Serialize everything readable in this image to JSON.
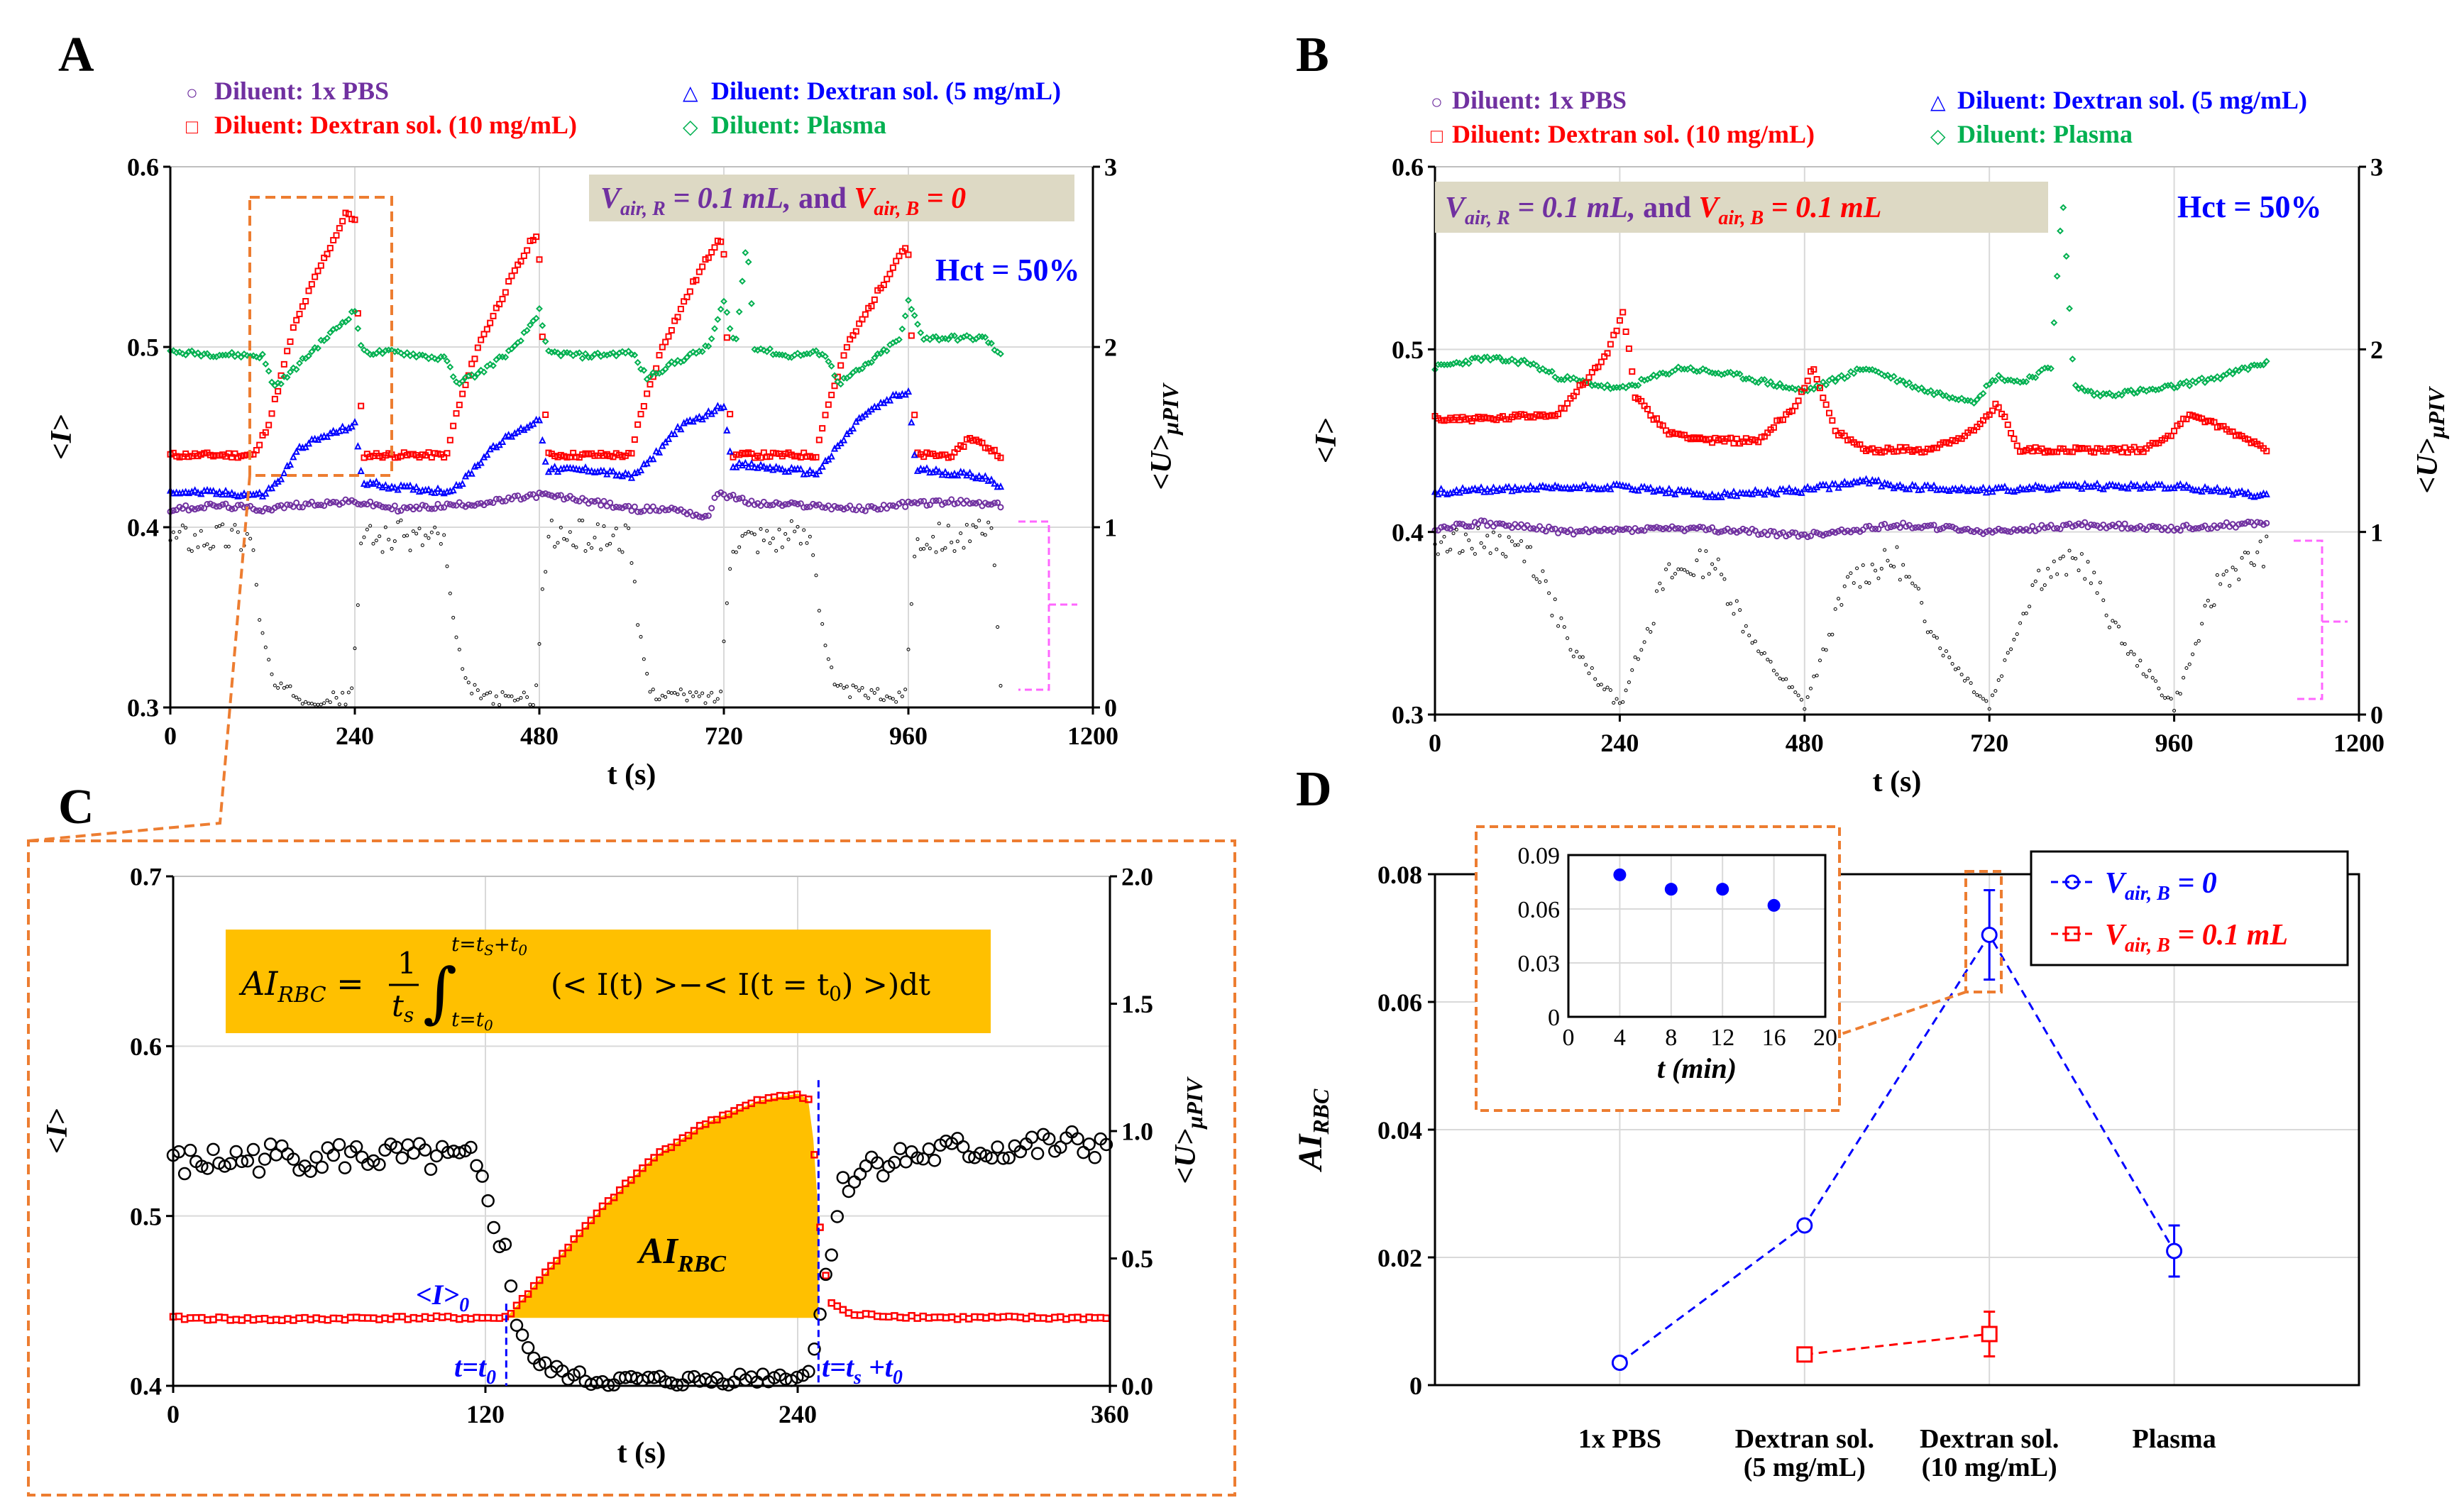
{
  "colors": {
    "pbs": "#7030a0",
    "dex10": "#ff0000",
    "dex5": "#0000ff",
    "plasma": "#00b050",
    "piv": "#000000",
    "box_orange": "#ed7d31",
    "formula_bg": "#ffc000",
    "banner_bg": "#ddd9c4",
    "magenta": "#ff66ff",
    "grid": "#d9d9d9"
  },
  "panels": {
    "A": {
      "letter": "A"
    },
    "B": {
      "letter": "B"
    },
    "C": {
      "letter": "C"
    },
    "D": {
      "letter": "D"
    }
  },
  "legend": {
    "pbs": "Diluent: 1x PBS",
    "dex10": "Diluent: Dextran sol. (10 mg/mL)",
    "dex5": "Diluent: Dextran sol. (5 mg/mL)",
    "plasma": "Diluent: Plasma"
  },
  "banner_A": {
    "part1": "V",
    "sub1": "air, R",
    "part2": " = 0.1 mL,",
    "and": "  and ",
    "part3": "V",
    "sub3": "air, B",
    "part4": " = 0"
  },
  "banner_B": {
    "part1": "V",
    "sub1": "air, R",
    "part2": " = 0.1 mL,",
    "and": "  and ",
    "part3": "V",
    "sub3": "air, B",
    "part4": " = 0.1 mL"
  },
  "hct_label": "Hct = 50%",
  "C_labels": {
    "formula_lhs": "AI",
    "formula_lhs_sub": "RBC",
    "formula_eq": " = ",
    "frac_num": "1",
    "frac_den": "t",
    "frac_den_sub": "s",
    "int_upper": "t=t",
    "int_upper_sub": "S",
    "int_upper_tail": "+t",
    "int_upper_sub2": "0",
    "int_lower": "t=t",
    "int_lower_sub": "0",
    "integrand": "(< I(t) >−< I(t = t",
    "integrand_sub": "0",
    "integrand_tail": ") >)dt",
    "ai_label": "AI",
    "ai_sub": "RBC",
    "i0_label": "<I>",
    "i0_sub": "0",
    "t0_label": "t=t",
    "t0_sub": "0",
    "ts_label": "t=t",
    "ts_sub": "s",
    "ts_tail": " +t",
    "ts_sub2": "0"
  },
  "axes": {
    "ylabel_I": "<I>",
    "ylabel_U": "<U>",
    "ylabel_U_sub": "μPIV",
    "xlabel_t": "t (s)",
    "ylabel_AI": "AI",
    "ylabel_AI_sub": "RBC",
    "inset_xlabel": "t (min)"
  },
  "D_legend": {
    "v0_a": "V",
    "v0_sub": "air, B",
    "v0_b": " = 0",
    "v1_a": "V",
    "v1_sub": "air, B",
    "v1_b": " = 0.1 mL"
  },
  "chart_data": [
    {
      "panel": "A",
      "type": "scatter",
      "title": "",
      "xlabel": "t (s)",
      "ylabel": "<I>",
      "y2label": "<U>μPIV",
      "xlim": [
        0,
        1200
      ],
      "ylim": [
        0.3,
        0.6
      ],
      "y2lim": [
        0,
        3
      ],
      "xticks": [
        0,
        240,
        480,
        720,
        960,
        1200
      ],
      "yticks": [
        0.3,
        0.4,
        0.5,
        0.6
      ],
      "y2ticks": [
        0,
        1,
        2,
        3
      ],
      "series": [
        {
          "name": "Diluent: Dextran sol. (10 mg/mL)",
          "key": "dex10",
          "x": [
            0,
            110,
            130,
            160,
            190,
            230,
            240,
            250,
            260,
            300,
            360,
            370,
            400,
            440,
            475,
            480,
            490,
            500,
            540,
            600,
            610,
            640,
            680,
            715,
            720,
            730,
            760,
            780,
            840,
            850,
            880,
            920,
            955,
            960,
            970,
            1000,
            1020,
            1040,
            1080
          ],
          "y": [
            0.44,
            0.44,
            0.46,
            0.51,
            0.54,
            0.575,
            0.57,
            0.44,
            0.44,
            0.44,
            0.44,
            0.46,
            0.5,
            0.535,
            0.563,
            0.55,
            0.44,
            0.44,
            0.44,
            0.44,
            0.46,
            0.5,
            0.535,
            0.562,
            0.55,
            0.44,
            0.44,
            0.44,
            0.44,
            0.46,
            0.5,
            0.53,
            0.556,
            0.55,
            0.44,
            0.44,
            0.44,
            0.45,
            0.44
          ]
        },
        {
          "name": "Diluent: Plasma",
          "key": "plasma",
          "x": [
            0,
            120,
            135,
            150,
            190,
            240,
            250,
            300,
            360,
            370,
            400,
            450,
            480,
            490,
            540,
            600,
            620,
            650,
            700,
            720,
            735,
            750,
            760,
            800,
            850,
            870,
            900,
            950,
            960,
            980,
            1000,
            1060,
            1080
          ],
          "y": [
            0.497,
            0.495,
            0.478,
            0.483,
            0.5,
            0.52,
            0.497,
            0.497,
            0.493,
            0.48,
            0.485,
            0.5,
            0.52,
            0.497,
            0.495,
            0.497,
            0.483,
            0.49,
            0.5,
            0.525,
            0.5,
            0.56,
            0.5,
            0.495,
            0.497,
            0.48,
            0.488,
            0.505,
            0.525,
            0.505,
            0.505,
            0.505,
            0.495
          ]
        },
        {
          "name": "Diluent: Dextran sol. (5 mg/mL)",
          "key": "dex5",
          "x": [
            0,
            120,
            140,
            170,
            210,
            240,
            250,
            300,
            360,
            380,
            420,
            460,
            480,
            490,
            550,
            600,
            620,
            660,
            700,
            720,
            730,
            780,
            840,
            860,
            900,
            940,
            960,
            970,
            1020,
            1060,
            1080
          ],
          "y": [
            0.42,
            0.418,
            0.425,
            0.445,
            0.452,
            0.457,
            0.425,
            0.422,
            0.42,
            0.425,
            0.445,
            0.455,
            0.46,
            0.432,
            0.432,
            0.428,
            0.435,
            0.455,
            0.463,
            0.468,
            0.435,
            0.433,
            0.43,
            0.44,
            0.462,
            0.472,
            0.475,
            0.432,
            0.43,
            0.428,
            0.422
          ]
        },
        {
          "name": "Diluent: 1x PBS",
          "key": "pbs",
          "x": [
            0,
            60,
            120,
            180,
            240,
            300,
            360,
            420,
            480,
            540,
            600,
            660,
            700,
            710,
            720,
            760,
            840,
            900,
            960,
            1020,
            1080
          ],
          "y": [
            0.41,
            0.412,
            0.41,
            0.413,
            0.414,
            0.41,
            0.412,
            0.414,
            0.418,
            0.415,
            0.41,
            0.41,
            0.405,
            0.42,
            0.418,
            0.413,
            0.412,
            0.41,
            0.413,
            0.414,
            0.412
          ]
        },
        {
          "name": "<U>μPIV",
          "key": "piv",
          "axis": "y2",
          "x": [
            0,
            105,
            120,
            135,
            175,
            235,
            250,
            265,
            355,
            370,
            385,
            415,
            475,
            490,
            505,
            595,
            610,
            625,
            715,
            730,
            745,
            835,
            850,
            865,
            955,
            970,
            985,
            1070,
            1080
          ],
          "y": [
            0.95,
            0.95,
            0.4,
            0.12,
            0.05,
            0.05,
            0.95,
            0.95,
            0.95,
            0.4,
            0.12,
            0.05,
            0.05,
            0.95,
            0.95,
            0.95,
            0.4,
            0.08,
            0.05,
            0.95,
            0.95,
            0.95,
            0.4,
            0.1,
            0.05,
            0.95,
            0.95,
            0.95,
            0.1
          ]
        }
      ]
    },
    {
      "panel": "B",
      "type": "scatter",
      "title": "",
      "xlabel": "t (s)",
      "ylabel": "<I>",
      "y2label": "<U>μPIV",
      "xlim": [
        0,
        1200
      ],
      "ylim": [
        0.3,
        0.6
      ],
      "y2lim": [
        0,
        3
      ],
      "xticks": [
        0,
        240,
        480,
        720,
        960,
        1200
      ],
      "yticks": [
        0.3,
        0.4,
        0.5,
        0.6
      ],
      "y2ticks": [
        0,
        1,
        2,
        3
      ],
      "series": [
        {
          "name": "Diluent: Plasma",
          "key": "plasma",
          "x": [
            0,
            60,
            120,
            160,
            240,
            320,
            400,
            480,
            560,
            640,
            700,
            730,
            760,
            800,
            815,
            830,
            860,
            940,
            1020,
            1080
          ],
          "y": [
            0.49,
            0.495,
            0.493,
            0.485,
            0.478,
            0.49,
            0.485,
            0.477,
            0.49,
            0.477,
            0.472,
            0.485,
            0.482,
            0.49,
            0.585,
            0.48,
            0.475,
            0.478,
            0.485,
            0.493
          ]
        },
        {
          "name": "Diluent: Dextran sol. (10 mg/mL)",
          "key": "dex10",
          "x": [
            0,
            80,
            160,
            220,
            245,
            260,
            300,
            360,
            420,
            470,
            490,
            520,
            560,
            640,
            700,
            730,
            760,
            840,
            920,
            960,
            980,
            1060,
            1080
          ],
          "y": [
            0.462,
            0.462,
            0.465,
            0.495,
            0.52,
            0.475,
            0.455,
            0.45,
            0.45,
            0.47,
            0.49,
            0.455,
            0.445,
            0.445,
            0.455,
            0.47,
            0.445,
            0.445,
            0.445,
            0.455,
            0.465,
            0.45,
            0.445
          ]
        },
        {
          "name": "Diluent: Dextran sol. (5 mg/mL)",
          "key": "dex5",
          "x": [
            0,
            120,
            240,
            360,
            480,
            560,
            600,
            720,
            840,
            960,
            1080
          ],
          "y": [
            0.422,
            0.424,
            0.425,
            0.42,
            0.423,
            0.428,
            0.425,
            0.423,
            0.425,
            0.425,
            0.42
          ]
        },
        {
          "name": "Diluent: 1x PBS",
          "key": "pbs",
          "x": [
            0,
            60,
            180,
            300,
            420,
            480,
            600,
            720,
            840,
            960,
            1080
          ],
          "y": [
            0.402,
            0.405,
            0.4,
            0.402,
            0.4,
            0.398,
            0.404,
            0.4,
            0.404,
            0.402,
            0.405
          ]
        },
        {
          "name": "<U>μPIV",
          "key": "piv",
          "axis": "y2",
          "x": [
            0,
            60,
            120,
            180,
            240,
            300,
            360,
            420,
            480,
            540,
            600,
            660,
            720,
            780,
            840,
            900,
            960,
            1020,
            1080
          ],
          "y": [
            0.95,
            0.95,
            0.9,
            0.35,
            0.05,
            0.75,
            0.85,
            0.35,
            0.05,
            0.75,
            0.85,
            0.35,
            0.05,
            0.75,
            0.85,
            0.35,
            0.05,
            0.75,
            0.9
          ]
        }
      ]
    },
    {
      "panel": "C",
      "type": "scatter",
      "title": "",
      "xlabel": "t (s)",
      "ylabel": "<I>",
      "y2label": "<U>μPIV",
      "xlim": [
        0,
        360
      ],
      "ylim": [
        0.4,
        0.7
      ],
      "y2lim": [
        0,
        2
      ],
      "xticks": [
        0,
        120,
        240,
        360
      ],
      "yticks": [
        0.4,
        0.5,
        0.6,
        0.7
      ],
      "y2ticks": [
        0.0,
        0.5,
        1.0,
        1.5,
        2.0
      ],
      "series": [
        {
          "name": "<I>",
          "key": "dex10",
          "x": [
            0,
            40,
            80,
            120,
            128,
            145,
            165,
            185,
            205,
            225,
            240,
            245,
            248,
            252,
            260,
            300,
            340,
            360
          ],
          "y": [
            0.44,
            0.439,
            0.44,
            0.44,
            0.44,
            0.47,
            0.505,
            0.535,
            0.555,
            0.568,
            0.572,
            0.568,
            0.5,
            0.45,
            0.442,
            0.44,
            0.44,
            0.44
          ]
        },
        {
          "name": "<U>μPIV",
          "key": "piv",
          "axis": "y2",
          "x": [
            0,
            40,
            80,
            115,
            122,
            128,
            132,
            140,
            160,
            200,
            240,
            245,
            250,
            258,
            270,
            300,
            360
          ],
          "y": [
            0.87,
            0.9,
            0.9,
            0.88,
            0.7,
            0.5,
            0.25,
            0.08,
            0.02,
            0.02,
            0.04,
            0.05,
            0.4,
            0.8,
            0.88,
            0.92,
            0.95
          ]
        }
      ],
      "annotations": {
        "t0": 128,
        "ts_plus_t0": 248,
        "I0": 0.44
      }
    },
    {
      "panel": "D",
      "type": "line",
      "title": "",
      "xlabel": "",
      "ylabel": "AI_RBC",
      "categories": [
        "1x PBS",
        "Dextran sol.\n(5 mg/mL)",
        "Dextran sol.\n(10 mg/mL)",
        "Plasma"
      ],
      "ylim": [
        0,
        0.08
      ],
      "yticks": [
        0,
        0.02,
        0.04,
        0.06,
        0.08
      ],
      "series": [
        {
          "name": "V_air,B = 0",
          "key": "dex5",
          "values": [
            0.0035,
            0.025,
            0.0705,
            0.021
          ],
          "errors": [
            0,
            0,
            0.007,
            0.004
          ]
        },
        {
          "name": "V_air,B = 0.1 mL",
          "key": "dex10",
          "values": [
            null,
            0.0048,
            0.008,
            null
          ],
          "errors": [
            0,
            0.0005,
            0.0035,
            0
          ]
        }
      ],
      "inset": {
        "type": "scatter",
        "xlabel": "t (min)",
        "xlim": [
          0,
          20
        ],
        "ylim": [
          0,
          0.09
        ],
        "xticks": [
          0,
          4,
          8,
          12,
          16,
          20
        ],
        "yticks": [
          0,
          0.03,
          0.06,
          0.09
        ],
        "x": [
          4,
          8,
          12,
          16
        ],
        "y": [
          0.079,
          0.071,
          0.071,
          0.062
        ]
      }
    }
  ]
}
